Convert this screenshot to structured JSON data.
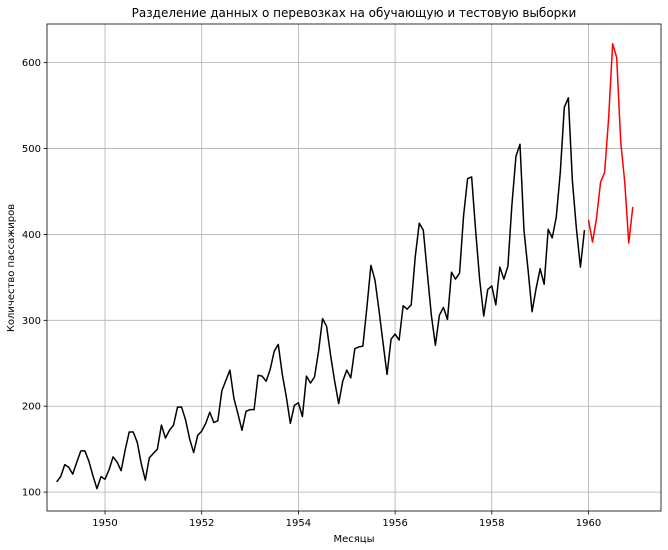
{
  "chart_data": {
    "type": "line",
    "title": "Разделение данных о перевозках на обучающую и тестовую выборки",
    "xlabel": "Месяцы",
    "ylabel": "Количество пассажиров",
    "xlim": [
      1948.8,
      1961.5
    ],
    "ylim": [
      78,
      645
    ],
    "xticks": [
      1950,
      1952,
      1954,
      1956,
      1958,
      1960
    ],
    "yticks": [
      100,
      200,
      300,
      400,
      500,
      600
    ],
    "grid": true,
    "colors": {
      "train": "#000000",
      "test": "#ff0000",
      "grid": "#b0b0b0",
      "axes": "#000000"
    },
    "x_start": "1949-01",
    "series": [
      {
        "values": [
          112,
          118,
          132,
          129,
          121,
          135,
          148,
          148,
          136,
          119,
          104,
          118,
          115,
          126,
          141,
          135,
          125,
          149,
          170,
          170,
          158,
          133,
          114,
          140,
          145,
          150,
          178,
          163,
          172,
          178,
          199,
          199,
          184,
          162,
          146,
          166,
          171,
          180,
          193,
          181,
          183,
          218,
          230,
          242,
          209,
          191,
          172,
          194,
          196,
          196,
          236,
          235,
          229,
          243,
          264,
          272,
          237,
          211,
          180,
          201,
          204,
          188,
          235,
          227,
          234,
          264,
          302,
          293,
          259,
          229,
          203,
          229,
          242,
          233,
          267,
          269,
          270,
          315,
          364,
          347,
          312,
          274,
          237,
          278,
          284,
          277,
          317,
          313,
          318,
          374,
          413,
          405,
          355,
          306,
          271,
          306,
          315,
          301,
          356,
          348,
          355,
          422,
          465,
          467,
          404,
          347,
          305,
          336,
          340,
          318,
          362,
          348,
          363,
          435,
          491,
          505,
          404,
          359,
          310,
          337,
          360,
          342,
          406,
          396,
          420,
          472,
          548,
          559,
          463,
          407,
          362,
          405
        ],
        "color": "#000000"
      },
      {
        "values": [
          417,
          391,
          419,
          461,
          472,
          535,
          622,
          606,
          508,
          461,
          390,
          432
        ],
        "color": "#ff0000"
      }
    ]
  }
}
